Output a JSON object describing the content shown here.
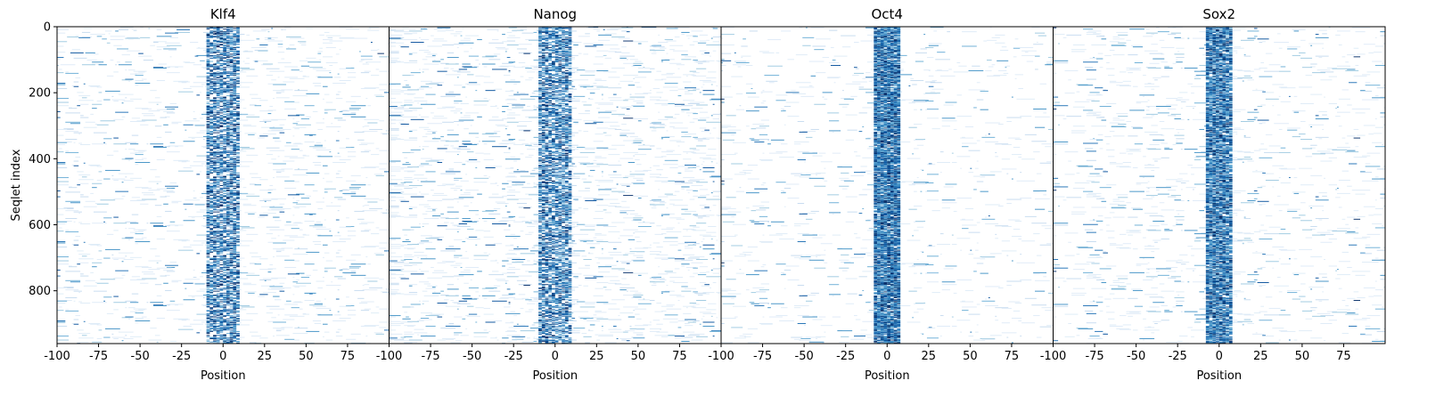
{
  "chart_data": {
    "type": "heatmap",
    "ylabel": "Seqlet index",
    "y_range": [
      0,
      960
    ],
    "y_ticks": [
      "0",
      "200",
      "400",
      "600",
      "800"
    ],
    "y_tick_values": [
      0,
      200,
      400,
      600,
      800
    ],
    "x_range": [
      -100,
      100
    ],
    "colormap": "Blues",
    "panels": [
      {
        "title": "Klf4",
        "xlabel": "Position",
        "x_ticks": [
          "-100",
          "-75",
          "-50",
          "-25",
          "0",
          "25",
          "50",
          "75"
        ],
        "x_tick_values": [
          -100,
          -75,
          -50,
          -25,
          0,
          25,
          50,
          75
        ],
        "center_band": [
          -10,
          10
        ],
        "background_density": 0.32,
        "band_density": 0.55
      },
      {
        "title": "Nanog",
        "xlabel": "Position",
        "x_ticks": [
          "-100",
          "-75",
          "-50",
          "-25",
          "0",
          "25",
          "50",
          "75"
        ],
        "x_tick_values": [
          -100,
          -75,
          -50,
          -25,
          0,
          25,
          50,
          75
        ],
        "center_band": [
          -10,
          10
        ],
        "background_density": 0.42,
        "band_density": 0.55
      },
      {
        "title": "Oct4",
        "xlabel": "Position",
        "x_ticks": [
          "-100",
          "-75",
          "-50",
          "-25",
          "0",
          "25",
          "50",
          "75"
        ],
        "x_tick_values": [
          -100,
          -75,
          -50,
          -25,
          0,
          25,
          50,
          75
        ],
        "center_band": [
          -8,
          8
        ],
        "background_density": 0.18,
        "band_density": 0.85
      },
      {
        "title": "Sox2",
        "xlabel": "Position",
        "x_ticks": [
          "-100",
          "-75",
          "-50",
          "-25",
          "0",
          "25",
          "50",
          "75"
        ],
        "x_tick_values": [
          -100,
          -75,
          -50,
          -25,
          0,
          25,
          50,
          75
        ],
        "center_band": [
          -8,
          8
        ],
        "background_density": 0.26,
        "band_density": 0.8
      }
    ]
  }
}
